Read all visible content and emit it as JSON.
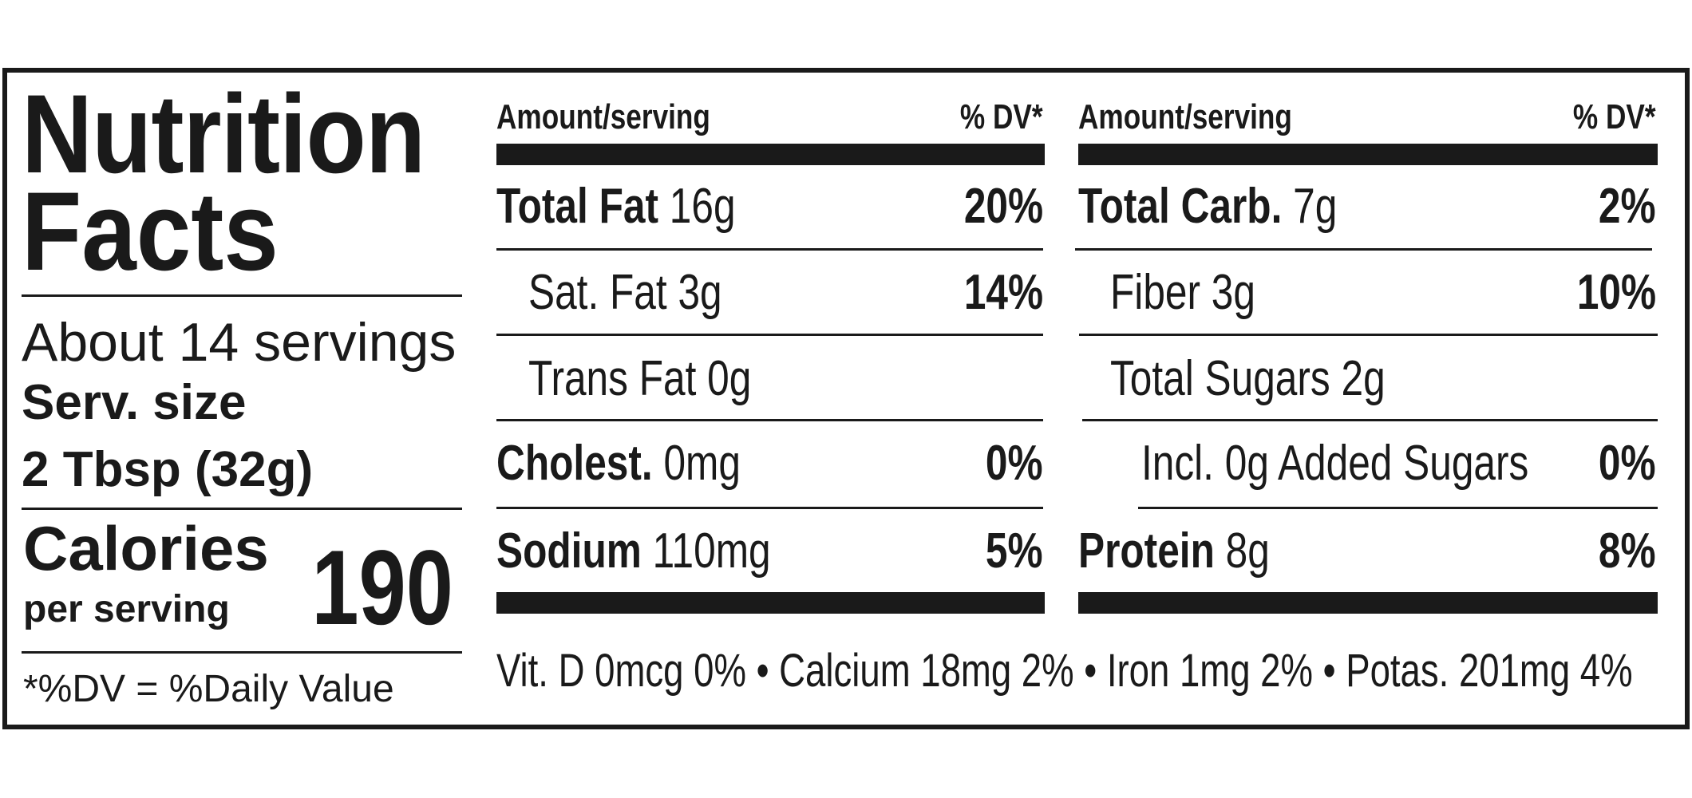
{
  "title_line1": "Nutrition",
  "title_line2": "Facts",
  "servings": "About 14 servings",
  "serving_size_label": "Serv. size",
  "serving_size_value": "2 Tbsp (32g)",
  "calories_label": "Calories",
  "calories_sub": "per serving",
  "calories_value": "190",
  "footnote": "*%DV = %Daily Value",
  "columns": [
    {
      "header_amount": "Amount/serving",
      "header_dv": "% DV*",
      "rows": [
        {
          "label": "Total Fat",
          "amount": "16g",
          "dv": "20%"
        },
        {
          "label": "",
          "amount": "Sat. Fat 3g",
          "dv": "14%"
        },
        {
          "label": "",
          "amount": "Trans Fat 0g",
          "dv": ""
        },
        {
          "label": "Cholest.",
          "amount": "0mg",
          "dv": "0%"
        },
        {
          "label": "Sodium",
          "amount": "110mg",
          "dv": "5%"
        }
      ]
    },
    {
      "header_amount": "Amount/serving",
      "header_dv": "% DV*",
      "rows": [
        {
          "label": "Total Carb.",
          "amount": "7g",
          "dv": "2%"
        },
        {
          "label": "",
          "amount": "Fiber 3g",
          "dv": "10%"
        },
        {
          "label": "",
          "amount": "Total Sugars 2g",
          "dv": ""
        },
        {
          "label": "",
          "amount": "Incl. 0g Added Sugars",
          "dv": "0%"
        },
        {
          "label": "Protein",
          "amount": "8g",
          "dv": "8%"
        }
      ]
    }
  ],
  "vitamins": "Vit. D 0mcg 0% • Calcium 18mg 2% • Iron 1mg 2% • Potas. 201mg 4%"
}
